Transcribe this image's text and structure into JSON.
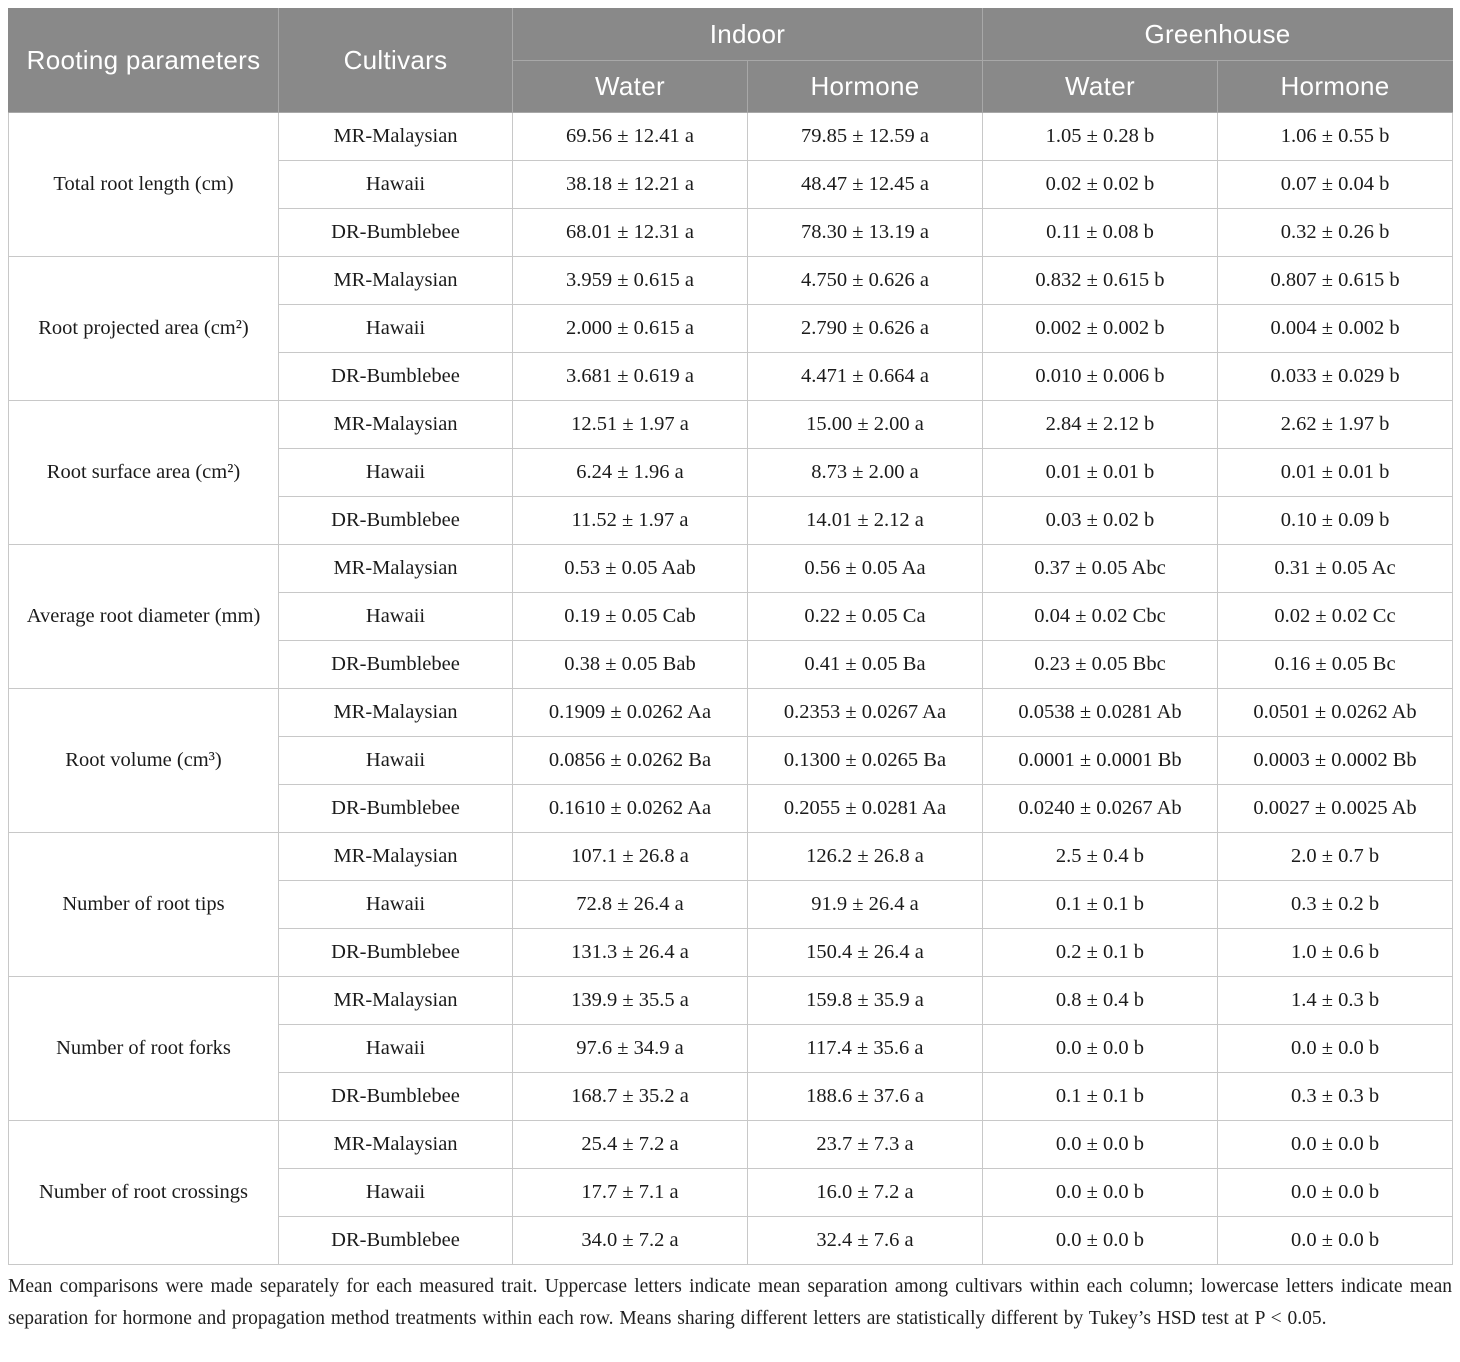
{
  "table": {
    "header": {
      "col_parameter": "Rooting parameters",
      "col_cultivars": "Cultivars",
      "groups": [
        {
          "label": "Indoor",
          "sub": [
            "Water",
            "Hormone"
          ]
        },
        {
          "label": "Greenhouse",
          "sub": [
            "Water",
            "Hormone"
          ]
        }
      ]
    },
    "rows": [
      {
        "parameter": "Total root length (cm)",
        "cultivars": [
          {
            "name": "MR-Malaysian",
            "values": [
              "69.56 ± 12.41 a",
              "79.85 ± 12.59 a",
              "1.05 ± 0.28 b",
              "1.06 ± 0.55 b"
            ]
          },
          {
            "name": "Hawaii",
            "values": [
              "38.18 ± 12.21 a",
              "48.47 ± 12.45 a",
              "0.02 ± 0.02 b",
              "0.07 ± 0.04 b"
            ]
          },
          {
            "name": "DR-Bumblebee",
            "values": [
              "68.01 ± 12.31 a",
              "78.30 ± 13.19 a",
              "0.11 ± 0.08 b",
              "0.32 ± 0.26 b"
            ]
          }
        ]
      },
      {
        "parameter": "Root projected area (cm²)",
        "cultivars": [
          {
            "name": "MR-Malaysian",
            "values": [
              "3.959 ± 0.615 a",
              "4.750 ± 0.626 a",
              "0.832 ± 0.615 b",
              "0.807 ± 0.615 b"
            ]
          },
          {
            "name": "Hawaii",
            "values": [
              "2.000 ± 0.615 a",
              "2.790 ± 0.626 a",
              "0.002 ± 0.002 b",
              "0.004 ± 0.002 b"
            ]
          },
          {
            "name": "DR-Bumblebee",
            "values": [
              "3.681 ± 0.619 a",
              "4.471 ± 0.664 a",
              "0.010 ± 0.006 b",
              "0.033 ± 0.029 b"
            ]
          }
        ]
      },
      {
        "parameter": "Root surface area (cm²)",
        "cultivars": [
          {
            "name": "MR-Malaysian",
            "values": [
              "12.51 ± 1.97 a",
              "15.00 ± 2.00 a",
              "2.84 ± 2.12 b",
              "2.62 ± 1.97 b"
            ]
          },
          {
            "name": "Hawaii",
            "values": [
              "6.24 ± 1.96 a",
              "8.73 ± 2.00 a",
              "0.01 ± 0.01 b",
              "0.01 ± 0.01 b"
            ]
          },
          {
            "name": "DR-Bumblebee",
            "values": [
              "11.52 ± 1.97 a",
              "14.01 ± 2.12 a",
              "0.03 ± 0.02 b",
              "0.10 ± 0.09 b"
            ]
          }
        ]
      },
      {
        "parameter": "Average root diameter (mm)",
        "cultivars": [
          {
            "name": "MR-Malaysian",
            "values": [
              "0.53 ± 0.05 Aab",
              "0.56 ± 0.05 Aa",
              "0.37 ± 0.05 Abc",
              "0.31 ± 0.05 Ac"
            ]
          },
          {
            "name": "Hawaii",
            "values": [
              "0.19 ± 0.05 Cab",
              "0.22 ± 0.05 Ca",
              "0.04 ± 0.02 Cbc",
              "0.02 ± 0.02 Cc"
            ]
          },
          {
            "name": "DR-Bumblebee",
            "values": [
              "0.38 ± 0.05 Bab",
              "0.41 ± 0.05 Ba",
              "0.23 ± 0.05 Bbc",
              "0.16 ± 0.05 Bc"
            ]
          }
        ]
      },
      {
        "parameter": "Root volume (cm³)",
        "cultivars": [
          {
            "name": "MR-Malaysian",
            "values": [
              "0.1909 ± 0.0262 Aa",
              "0.2353 ± 0.0267 Aa",
              "0.0538 ± 0.0281 Ab",
              "0.0501 ± 0.0262 Ab"
            ]
          },
          {
            "name": "Hawaii",
            "values": [
              "0.0856 ± 0.0262 Ba",
              "0.1300 ± 0.0265 Ba",
              "0.0001 ± 0.0001 Bb",
              "0.0003 ± 0.0002 Bb"
            ]
          },
          {
            "name": "DR-Bumblebee",
            "values": [
              "0.1610 ± 0.0262 Aa",
              "0.2055 ± 0.0281 Aa",
              "0.0240 ± 0.0267 Ab",
              "0.0027 ± 0.0025 Ab"
            ]
          }
        ]
      },
      {
        "parameter": "Number of root tips",
        "cultivars": [
          {
            "name": "MR-Malaysian",
            "values": [
              "107.1 ± 26.8 a",
              "126.2 ± 26.8 a",
              "2.5 ± 0.4 b",
              "2.0 ± 0.7 b"
            ]
          },
          {
            "name": "Hawaii",
            "values": [
              "72.8 ± 26.4 a",
              "91.9 ± 26.4 a",
              "0.1 ± 0.1 b",
              "0.3 ± 0.2 b"
            ]
          },
          {
            "name": "DR-Bumblebee",
            "values": [
              "131.3 ± 26.4 a",
              "150.4 ± 26.4 a",
              "0.2 ± 0.1 b",
              "1.0 ± 0.6 b"
            ]
          }
        ]
      },
      {
        "parameter": "Number of root forks",
        "cultivars": [
          {
            "name": "MR-Malaysian",
            "values": [
              "139.9 ± 35.5 a",
              "159.8 ± 35.9 a",
              "0.8 ± 0.4 b",
              "1.4 ± 0.3 b"
            ]
          },
          {
            "name": "Hawaii",
            "values": [
              "97.6 ± 34.9 a",
              "117.4 ± 35.6 a",
              "0.0 ± 0.0 b",
              "0.0 ± 0.0 b"
            ]
          },
          {
            "name": "DR-Bumblebee",
            "values": [
              "168.7 ± 35.2 a",
              "188.6 ± 37.6 a",
              "0.1 ± 0.1 b",
              "0.3 ± 0.3 b"
            ]
          }
        ]
      },
      {
        "parameter": "Number of root crossings",
        "cultivars": [
          {
            "name": "MR-Malaysian",
            "values": [
              "25.4 ± 7.2 a",
              "23.7 ± 7.3 a",
              "0.0 ± 0.0 b",
              "0.0 ± 0.0 b"
            ]
          },
          {
            "name": "Hawaii",
            "values": [
              "17.7 ± 7.1 a",
              "16.0 ± 7.2 a",
              "0.0 ± 0.0 b",
              "0.0 ± 0.0 b"
            ]
          },
          {
            "name": "DR-Bumblebee",
            "values": [
              "34.0 ± 7.2 a",
              "32.4 ± 7.6 a",
              "0.0 ± 0.0 b",
              "0.0 ± 0.0 b"
            ]
          }
        ]
      }
    ]
  },
  "footnote": "Mean comparisons were made separately for each measured trait. Uppercase letters indicate mean separation among cultivars within each column; lowercase letters indicate mean separation for hormone and propagation method treatments within each row. Means sharing different letters are statistically different by Tukey’s HSD test at P < 0.05.",
  "colors": {
    "header_bg": "#898989",
    "header_text": "#ffffff",
    "body_border": "#c8c8c8",
    "body_text": "#1b1b1b"
  }
}
